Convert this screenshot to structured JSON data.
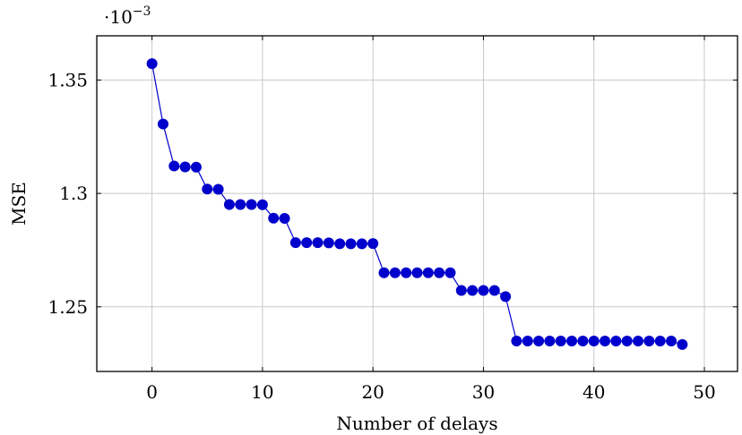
{
  "chart_data": {
    "type": "line",
    "title": "",
    "xlabel": "Number of delays",
    "ylabel": "MSE",
    "y_multiplier_base": "·10",
    "y_multiplier_exponent": "−3",
    "xlim": [
      -5,
      53
    ],
    "ylim": [
      1.2215,
      1.3695
    ],
    "x_ticks": [
      0,
      10,
      20,
      30,
      40,
      50
    ],
    "x_tick_labels": [
      "0",
      "10",
      "20",
      "30",
      "40",
      "50"
    ],
    "y_ticks": [
      1.25,
      1.3,
      1.35
    ],
    "y_tick_labels": [
      "1.25",
      "1.3",
      "1.35"
    ],
    "grid": true,
    "legend": "none",
    "series": [
      {
        "color": "#0000cc",
        "marker": "circle",
        "x": [
          0,
          1,
          2,
          3,
          4,
          5,
          6,
          7,
          8,
          9,
          10,
          11,
          12,
          13,
          14,
          15,
          16,
          17,
          18,
          19,
          20,
          21,
          22,
          23,
          24,
          25,
          26,
          27,
          28,
          29,
          30,
          31,
          32,
          33,
          34,
          35,
          36,
          37,
          38,
          39,
          40,
          41,
          42,
          43,
          44,
          45,
          46,
          47,
          48
        ],
        "y": [
          1.3572,
          1.3306,
          1.3121,
          1.3117,
          1.3116,
          1.3019,
          1.3018,
          1.2951,
          1.2951,
          1.2951,
          1.295,
          1.2891,
          1.289,
          1.2783,
          1.2783,
          1.2783,
          1.2782,
          1.2778,
          1.2778,
          1.2778,
          1.2779,
          1.265,
          1.265,
          1.265,
          1.265,
          1.265,
          1.265,
          1.265,
          1.2572,
          1.2572,
          1.2572,
          1.2572,
          1.2545,
          1.2349,
          1.2349,
          1.2349,
          1.2349,
          1.2349,
          1.2349,
          1.2349,
          1.2349,
          1.2349,
          1.2349,
          1.2349,
          1.2349,
          1.2349,
          1.2349,
          1.2349,
          1.2334
        ]
      }
    ]
  }
}
